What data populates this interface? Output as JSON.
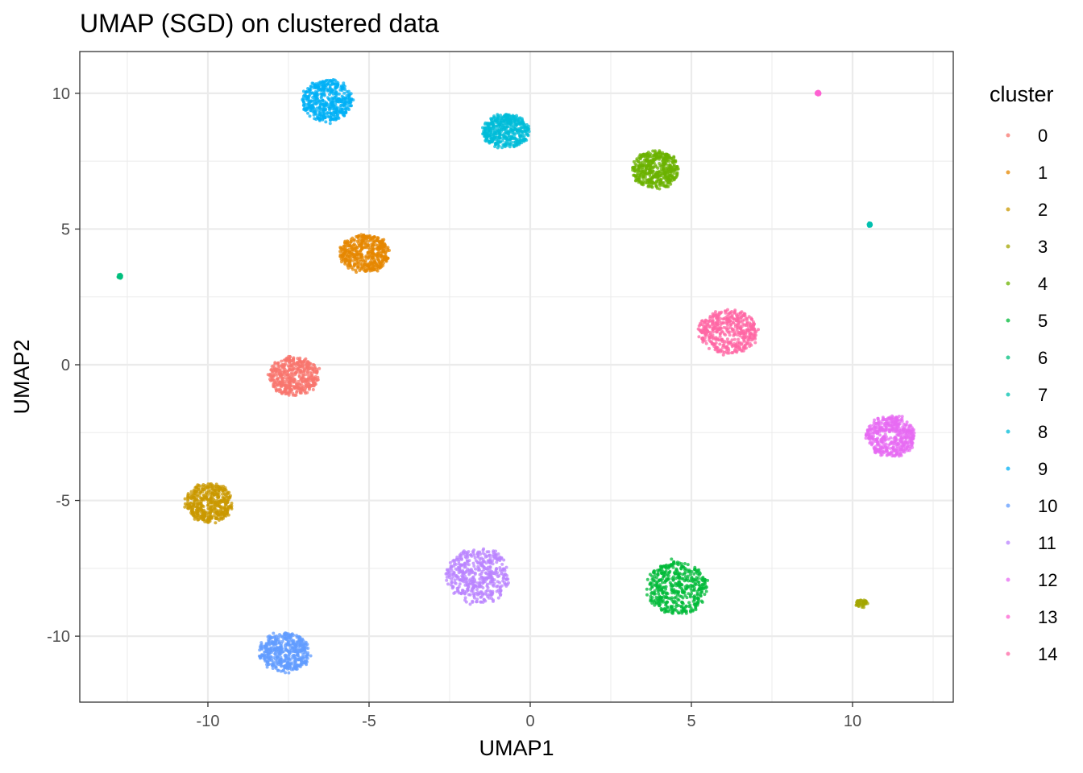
{
  "chart_data": {
    "type": "scatter",
    "title": "UMAP (SGD) on clustered data",
    "xlabel": "UMAP1",
    "ylabel": "UMAP2",
    "xlim": [
      -13.975,
      13.125
    ],
    "ylim": [
      -12.43,
      11.54
    ],
    "xticks": [
      -10,
      -5,
      0,
      5,
      10
    ],
    "yticks": [
      -10,
      -5,
      0,
      5,
      10
    ],
    "xtick_labels": [
      "-10",
      "-5",
      "0",
      "5",
      "10"
    ],
    "ytick_labels": [
      "-10",
      "-5",
      "0",
      "5",
      "10"
    ],
    "grid": true,
    "legend": {
      "title": "cluster",
      "position": "right"
    },
    "series": [
      {
        "name": "0",
        "color": "#F8766D",
        "center": [
          -7.33,
          -0.42
        ],
        "spread": [
          0.8,
          0.75
        ]
      },
      {
        "name": "1",
        "color": "#E58700",
        "center": [
          -5.13,
          4.1
        ],
        "spread": [
          0.8,
          0.7
        ]
      },
      {
        "name": "2",
        "color": "#C99800",
        "center": [
          -9.95,
          -5.1
        ],
        "spread": [
          0.75,
          0.75
        ]
      },
      {
        "name": "3",
        "color": "#A3A500",
        "center": [
          10.28,
          -8.8
        ],
        "spread": [
          0.2,
          0.15
        ]
      },
      {
        "name": "4",
        "color": "#6BB100",
        "center": [
          3.88,
          7.18
        ],
        "spread": [
          0.75,
          0.72
        ]
      },
      {
        "name": "5",
        "color": "#00BA38",
        "center": [
          4.55,
          -8.22
        ],
        "spread": [
          0.95,
          1.0
        ]
      },
      {
        "name": "6",
        "color": "#00BF7D",
        "center": [
          -12.73,
          3.26
        ],
        "spread": [
          0.06,
          0.08
        ]
      },
      {
        "name": "7",
        "color": "#00C0AF",
        "center": [
          10.53,
          5.16
        ],
        "spread": [
          0.05,
          0.07
        ]
      },
      {
        "name": "8",
        "color": "#00BCD8",
        "center": [
          -0.75,
          8.6
        ],
        "spread": [
          0.75,
          0.65
        ]
      },
      {
        "name": "9",
        "color": "#00B0F6",
        "center": [
          -6.3,
          9.73
        ],
        "spread": [
          0.8,
          0.8
        ]
      },
      {
        "name": "10",
        "color": "#619CFF",
        "center": [
          -7.63,
          -10.6
        ],
        "spread": [
          0.8,
          0.75
        ]
      },
      {
        "name": "11",
        "color": "#B983FF",
        "center": [
          -1.6,
          -7.77
        ],
        "spread": [
          1.0,
          1.05
        ]
      },
      {
        "name": "12",
        "color": "#E76BF3",
        "center": [
          11.18,
          -2.64
        ],
        "spread": [
          0.8,
          0.78
        ]
      },
      {
        "name": "13",
        "color": "#FD61D1",
        "center": [
          8.93,
          10.0
        ],
        "spread": [
          0.06,
          0.08
        ]
      },
      {
        "name": "14",
        "color": "#FF67A4",
        "center": [
          6.13,
          1.22
        ],
        "spread": [
          0.95,
          0.85
        ]
      }
    ]
  }
}
